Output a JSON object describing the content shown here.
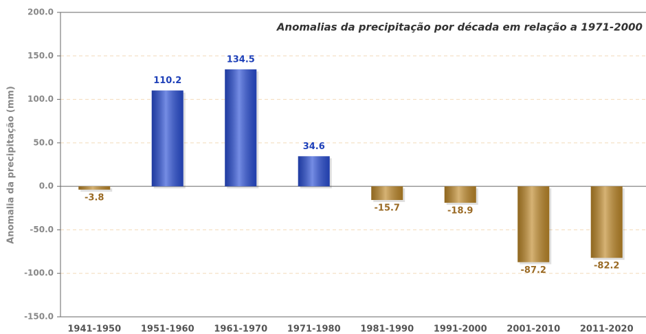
{
  "chart_data": {
    "type": "bar",
    "title": "Anomalias da precipitação por década em relação a 1971-2000",
    "y_label": "Anomalia da precipitação (mm)",
    "categories": [
      "1941-1950",
      "1951-1960",
      "1961-1970",
      "1971-1980",
      "1981-1990",
      "1991-2000",
      "2001-2010",
      "2011-2020"
    ],
    "values": [
      -3.8,
      110.2,
      134.5,
      34.6,
      -15.7,
      -18.9,
      -87.2,
      -82.2
    ],
    "positive_color": "#2a4fd6",
    "negative_color": "#c08a2a",
    "ylim": [
      -150,
      200
    ],
    "yticks": [
      {
        "value": -150,
        "label": "-150.0"
      },
      {
        "value": -100,
        "label": "-100.0"
      },
      {
        "value": -50,
        "label": "-50.0"
      },
      {
        "value": 0,
        "label": "0.0"
      },
      {
        "value": 50,
        "label": "50.0"
      },
      {
        "value": 100,
        "label": "100.0"
      },
      {
        "value": 150,
        "label": "150.0"
      },
      {
        "value": 200,
        "label": "200.0"
      }
    ],
    "grid": true
  }
}
